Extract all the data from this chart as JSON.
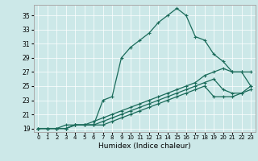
{
  "xlabel": "Humidex (Indice chaleur)",
  "bg_color": "#cce8e8",
  "line_color": "#1a6b5a",
  "xlim": [
    -0.5,
    23.5
  ],
  "ylim": [
    18.5,
    36.5
  ],
  "yticks": [
    19,
    21,
    23,
    25,
    27,
    29,
    31,
    33,
    35
  ],
  "xticks": [
    0,
    1,
    2,
    3,
    4,
    5,
    6,
    7,
    8,
    9,
    10,
    11,
    12,
    13,
    14,
    15,
    16,
    17,
    18,
    19,
    20,
    21,
    22,
    23
  ],
  "lines": [
    {
      "x": [
        0,
        1,
        2,
        3,
        4,
        5,
        6,
        7,
        8,
        9,
        10,
        11,
        12,
        13,
        14,
        15,
        16,
        17,
        18,
        19,
        20,
        21,
        22,
        23
      ],
      "y": [
        19,
        19,
        19,
        19.5,
        19.5,
        19.5,
        19.5,
        23,
        23.5,
        29,
        30.5,
        31.5,
        32.5,
        34,
        35,
        36,
        35,
        32,
        31.5,
        29.5,
        28.5,
        27,
        27,
        25
      ]
    },
    {
      "x": [
        0,
        1,
        2,
        3,
        4,
        5,
        6,
        7,
        8,
        9,
        10,
        11,
        12,
        13,
        14,
        15,
        16,
        17,
        18,
        19,
        20,
        21,
        22,
        23
      ],
      "y": [
        19,
        19,
        19,
        19,
        19.5,
        19.5,
        20,
        20.5,
        21,
        21.5,
        22,
        22.5,
        23,
        23.5,
        24,
        24.5,
        25,
        25.5,
        26.5,
        27,
        27.5,
        27,
        27,
        27
      ]
    },
    {
      "x": [
        0,
        1,
        2,
        3,
        4,
        5,
        6,
        7,
        8,
        9,
        10,
        11,
        12,
        13,
        14,
        15,
        16,
        17,
        18,
        19,
        20,
        21,
        22,
        23
      ],
      "y": [
        19,
        19,
        19,
        19,
        19.5,
        19.5,
        19.5,
        20,
        20.5,
        21,
        21.5,
        22,
        22.5,
        23,
        23.5,
        24,
        24.5,
        25,
        25.5,
        26,
        24.5,
        24,
        24,
        24.5
      ]
    },
    {
      "x": [
        0,
        1,
        2,
        3,
        4,
        5,
        6,
        7,
        8,
        9,
        10,
        11,
        12,
        13,
        14,
        15,
        16,
        17,
        18,
        19,
        20,
        21,
        22,
        23
      ],
      "y": [
        19,
        19,
        19,
        19,
        19.5,
        19.5,
        19.5,
        19.5,
        20,
        20.5,
        21,
        21.5,
        22,
        22.5,
        23,
        23.5,
        24,
        24.5,
        25,
        23.5,
        23.5,
        23.5,
        24,
        25
      ]
    }
  ]
}
